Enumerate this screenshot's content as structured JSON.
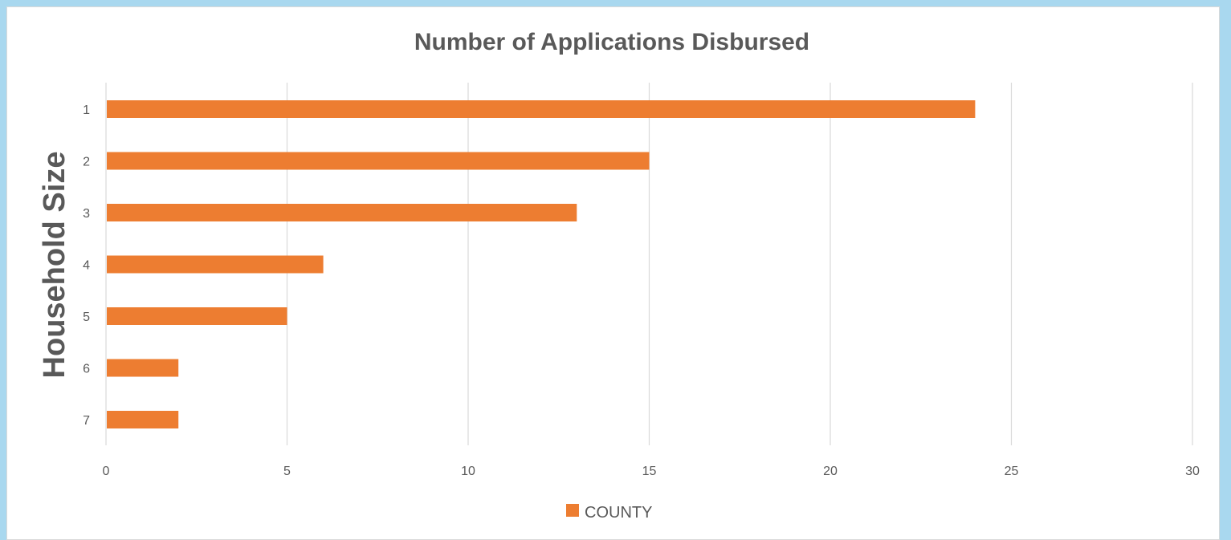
{
  "colors": {
    "background": "#a9d8ef",
    "bar": "#ed7d31",
    "grid": "#d9d9d9",
    "text": "#595959"
  },
  "chart_data": {
    "type": "bar",
    "orientation": "horizontal",
    "title": "Number of Applications Disbursed",
    "ylabel": "Household Size",
    "xlabel": "",
    "categories": [
      "1",
      "2",
      "3",
      "4",
      "5",
      "6",
      "7"
    ],
    "series": [
      {
        "name": "COUNTY",
        "values": [
          24,
          15,
          13,
          6,
          5,
          2,
          2
        ]
      }
    ],
    "xlim": [
      0,
      30
    ],
    "xticks": [
      "0",
      "5",
      "10",
      "15",
      "20",
      "25",
      "30"
    ],
    "grid": true,
    "legend_position": "bottom"
  }
}
